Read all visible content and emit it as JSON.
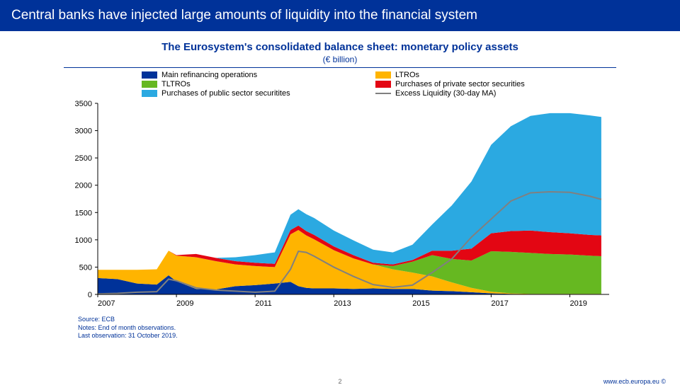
{
  "header": {
    "title": "Central banks have injected large amounts of liquidity into the financial system"
  },
  "chart": {
    "title": "The Eurosystem's consolidated balance sheet: monetary policy assets",
    "subtitle": "(€ billion)",
    "type": "stacked-area-with-line",
    "xlim": [
      2007,
      2020
    ],
    "xtick_step": 2,
    "ylim": [
      0,
      3500
    ],
    "ytick_step": 500,
    "background_color": "#ffffff",
    "axis_color": "#000000",
    "grid": false,
    "axis_fontsize": 11,
    "line_width": 2,
    "series": [
      {
        "key": "mro",
        "label": "Main refinancing operations",
        "color": "#003299",
        "type": "area"
      },
      {
        "key": "ltro",
        "label": "LTROs",
        "color": "#ffb400",
        "type": "area"
      },
      {
        "key": "tltro",
        "label": "TLTROs",
        "color": "#66b821",
        "type": "area"
      },
      {
        "key": "priv",
        "label": "Purchases of private sector securities",
        "color": "#e30613",
        "type": "area"
      },
      {
        "key": "pub",
        "label": "Purchases of public sector securitites",
        "color": "#2ba9e1",
        "type": "area"
      },
      {
        "key": "xl",
        "label": "Excess Liquidity (30-day MA)",
        "color": "#808080",
        "type": "line"
      }
    ],
    "x": [
      2007.0,
      2007.5,
      2008.0,
      2008.5,
      2008.8,
      2009.0,
      2009.5,
      2010.0,
      2010.5,
      2011.0,
      2011.5,
      2011.9,
      2012.1,
      2012.3,
      2012.5,
      2013.0,
      2013.5,
      2014.0,
      2014.5,
      2015.0,
      2015.5,
      2016.0,
      2016.5,
      2017.0,
      2017.5,
      2018.0,
      2018.5,
      2019.0,
      2019.5,
      2019.8
    ],
    "stacked": {
      "mro": [
        300,
        280,
        200,
        180,
        350,
        240,
        100,
        90,
        150,
        170,
        200,
        230,
        150,
        120,
        110,
        110,
        100,
        110,
        100,
        100,
        70,
        60,
        40,
        20,
        10,
        5,
        5,
        5,
        5,
        5
      ],
      "ltro": [
        150,
        170,
        250,
        280,
        450,
        470,
        580,
        520,
        400,
        350,
        300,
        870,
        1030,
        960,
        900,
        700,
        560,
        440,
        360,
        300,
        260,
        160,
        80,
        30,
        10,
        5,
        5,
        5,
        5,
        5
      ],
      "tltro": [
        0,
        0,
        0,
        0,
        0,
        0,
        0,
        0,
        0,
        0,
        0,
        0,
        0,
        0,
        0,
        0,
        0,
        0,
        60,
        200,
        390,
        430,
        500,
        740,
        760,
        750,
        730,
        720,
        700,
        690
      ],
      "priv": [
        0,
        0,
        0,
        0,
        0,
        10,
        60,
        60,
        60,
        60,
        60,
        80,
        80,
        80,
        80,
        70,
        60,
        30,
        30,
        30,
        80,
        150,
        220,
        330,
        380,
        410,
        400,
        390,
        380,
        380
      ],
      "pub": [
        0,
        0,
        0,
        0,
        0,
        0,
        0,
        0,
        70,
        140,
        210,
        280,
        300,
        310,
        310,
        290,
        270,
        240,
        220,
        280,
        480,
        830,
        1230,
        1620,
        1920,
        2100,
        2180,
        2200,
        2190,
        2170
      ],
      "xl": [
        10,
        20,
        40,
        50,
        280,
        250,
        120,
        80,
        60,
        40,
        60,
        460,
        790,
        770,
        700,
        500,
        330,
        180,
        130,
        170,
        400,
        650,
        1050,
        1380,
        1710,
        1860,
        1880,
        1870,
        1800,
        1740
      ]
    }
  },
  "notes": {
    "source": "Source: ECB",
    "line2": "Notes: End of month observations.",
    "line3": "Last observation: 31 October 2019."
  },
  "footer": {
    "page": "2",
    "url": "www.ecb.europa.eu ©"
  }
}
